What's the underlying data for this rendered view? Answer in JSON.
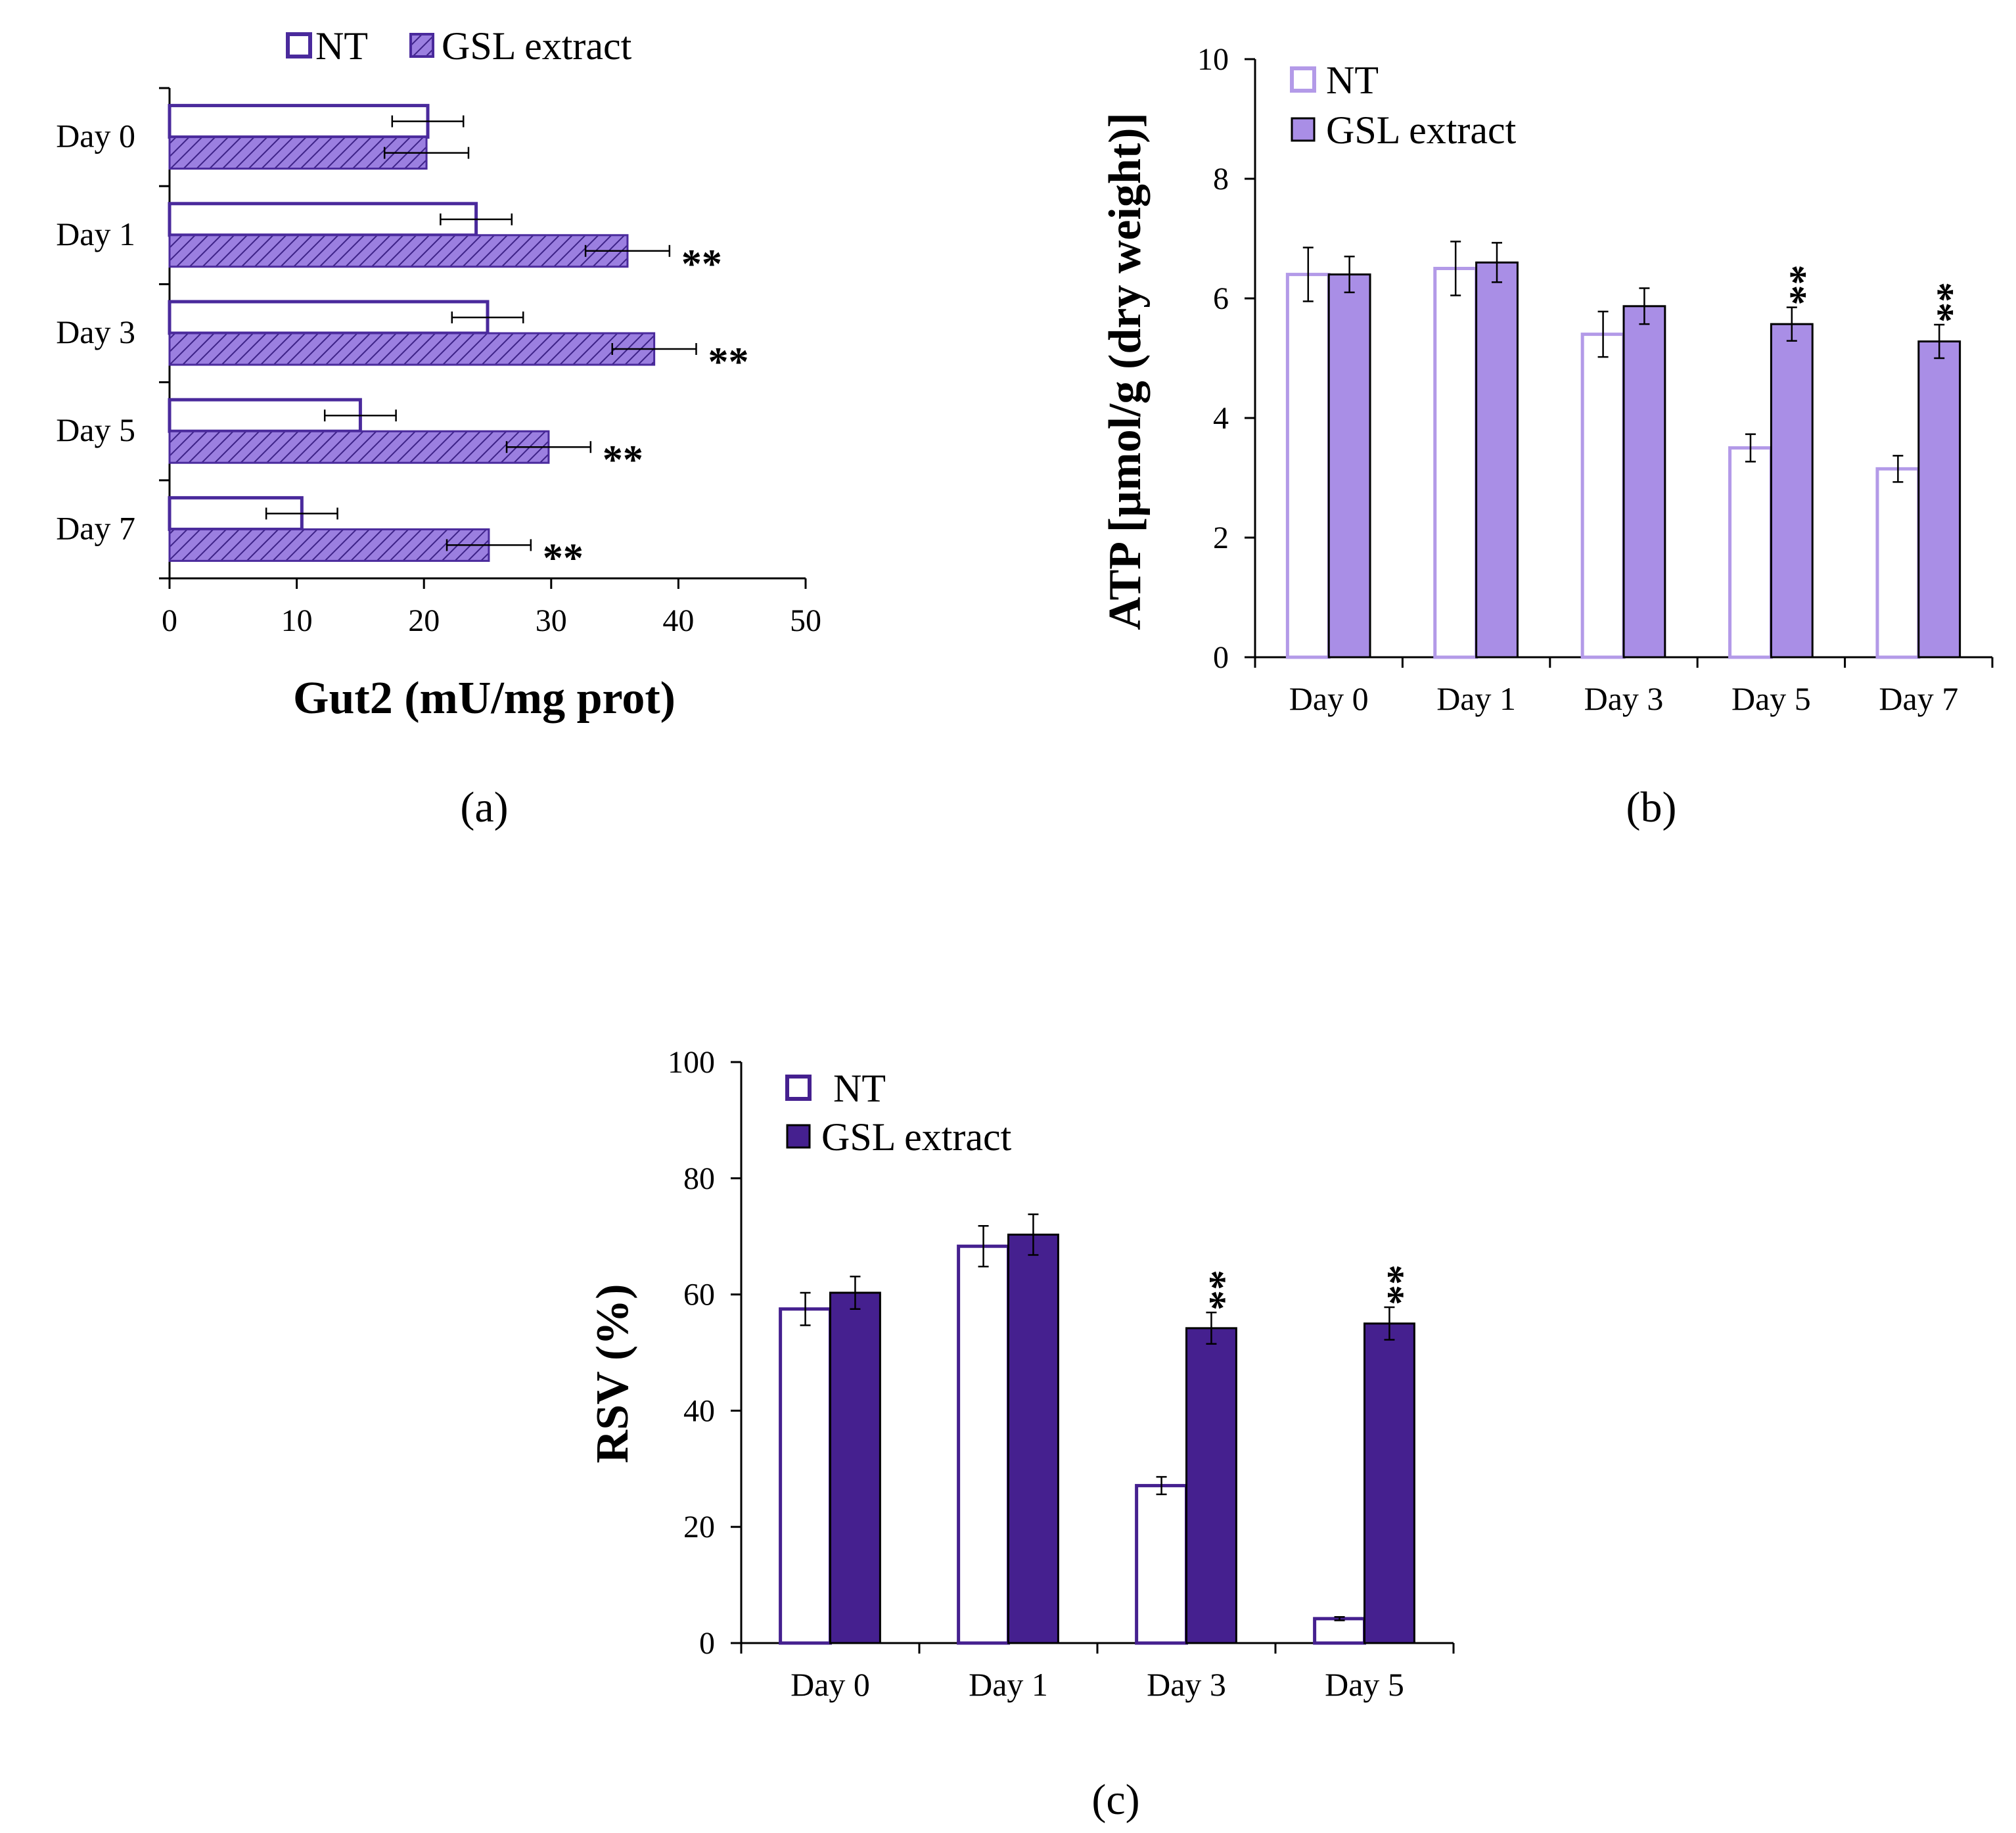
{
  "panels": [
    {
      "id": "a",
      "label": "(a)",
      "chart_data": {
        "type": "bar",
        "orientation": "horizontal",
        "categories": [
          "Day 0",
          "Day 1",
          "Day 3",
          "Day 5",
          "Day 7"
        ],
        "series": [
          {
            "name": "NT",
            "values": [
              20.3,
              24.1,
              25.0,
              15.0,
              10.4
            ],
            "errors": [
              2.8,
              2.8,
              2.8,
              2.8,
              2.8
            ],
            "color": "#4a2a9c",
            "fill": "none"
          },
          {
            "name": "GSL extract",
            "values": [
              20.2,
              36.0,
              38.1,
              29.8,
              25.1
            ],
            "errors": [
              3.3,
              3.3,
              3.3,
              3.3,
              3.3
            ],
            "color": "#4a2a9c",
            "fill": "hatch-#9b7fe0"
          }
        ],
        "significance": [
          "",
          "**",
          "**",
          "**",
          "**"
        ],
        "title": "",
        "xlabel": "Gut2 (mU/mg prot)",
        "ylabel": "",
        "xlim": [
          0,
          50
        ],
        "xticks": [
          "0",
          "10",
          "20",
          "30",
          "40",
          "50"
        ],
        "legend": "top",
        "grid": false
      }
    },
    {
      "id": "b",
      "label": "(b)",
      "chart_data": {
        "type": "bar",
        "orientation": "vertical",
        "categories": [
          "Day 0",
          "Day 1",
          "Day 3",
          "Day 5",
          "Day 7"
        ],
        "series": [
          {
            "name": "NT",
            "values": [
              6.4,
              6.5,
              5.4,
              3.5,
              3.15
            ],
            "errors": [
              0.45,
              0.45,
              0.38,
              0.23,
              0.22
            ],
            "color": "#b39ae8",
            "fill": "none"
          },
          {
            "name": "GSL extract",
            "values": [
              6.4,
              6.6,
              5.87,
              5.57,
              5.28
            ],
            "errors": [
              0.3,
              0.33,
              0.3,
              0.28,
              0.28
            ],
            "color": "#000000",
            "fill": "#a98ee6"
          }
        ],
        "significance": [
          "",
          "",
          "",
          "**",
          "**"
        ],
        "title": "",
        "xlabel": "",
        "ylabel": "ATP [µmol/g (dry weight)]",
        "ylim": [
          0,
          10
        ],
        "yticks": [
          "0",
          "2",
          "4",
          "6",
          "8",
          "10"
        ],
        "legend": "top-left",
        "grid": false
      }
    },
    {
      "id": "c",
      "label": "(c)",
      "chart_data": {
        "type": "bar",
        "orientation": "vertical",
        "categories": [
          "Day 0",
          "Day 1",
          "Day 3",
          "Day 5"
        ],
        "series": [
          {
            "name": "NT",
            "values": [
              57.5,
              68.3,
              27.1,
              4.2
            ],
            "errors": [
              2.8,
              3.5,
              1.5,
              0.3
            ],
            "color": "#45208f",
            "fill": "none"
          },
          {
            "name": "GSL extract",
            "values": [
              60.3,
              70.3,
              54.2,
              55.0
            ],
            "errors": [
              2.8,
              3.5,
              2.7,
              2.8
            ],
            "color": "#000000",
            "fill": "#45208f"
          }
        ],
        "significance": [
          "",
          "",
          "**",
          "**"
        ],
        "title": "",
        "xlabel": "",
        "ylabel": "RSV (%)",
        "ylim": [
          0,
          100
        ],
        "yticks": [
          "0",
          "20",
          "40",
          "60",
          "80",
          "100"
        ],
        "legend": "top-left",
        "grid": false
      }
    }
  ]
}
